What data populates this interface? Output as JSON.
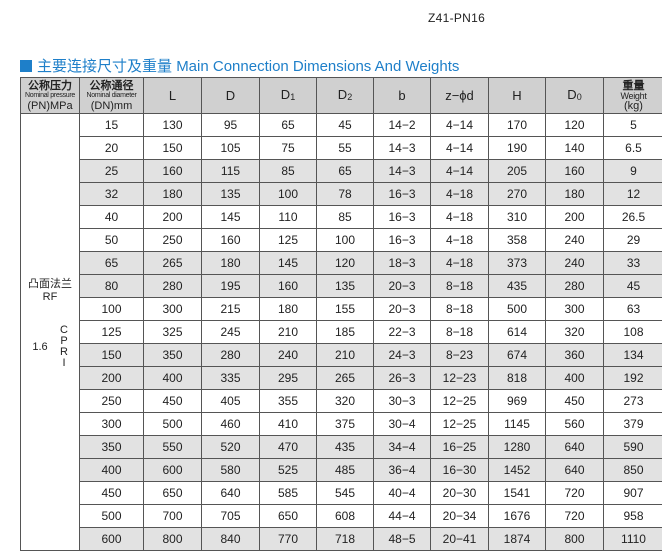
{
  "model": "Z41-PN16",
  "section_title_cn": "主要连接尺寸及重量",
  "section_title_en": "Main Connection Dimensions And Weights",
  "colors": {
    "accent": "#1e7fc9",
    "header_bg": "#d0d0d0",
    "stripe": "#e2e2e2"
  },
  "headers": {
    "pn_cn": "公称压力",
    "pn_en": "Nominal pressure",
    "pn_unit": "(PN)MPa",
    "dn_cn": "公称通径",
    "dn_en": "Nominal diameter",
    "dn_unit": "(DN)mm",
    "L": "L",
    "D": "D",
    "D1_base": "D",
    "D1_sub": "1",
    "D2_base": "D",
    "D2_sub": "2",
    "b": "b",
    "zd": "z−ϕd",
    "H": "H",
    "D0_base": "D",
    "D0_sub": "0",
    "w_cn": "重量",
    "w_en": "Weight",
    "w_unit": "(kg)"
  },
  "left_cell": {
    "face_cn": "凸面法兰",
    "face_en": "RF",
    "pressure": "1.6",
    "vertical": [
      "C",
      "P",
      "R",
      "I"
    ]
  },
  "rows": [
    [
      "15",
      "130",
      "95",
      "65",
      "45",
      "14−2",
      "4−14",
      "170",
      "120",
      "5"
    ],
    [
      "20",
      "150",
      "105",
      "75",
      "55",
      "14−3",
      "4−14",
      "190",
      "140",
      "6.5"
    ],
    [
      "25",
      "160",
      "115",
      "85",
      "65",
      "14−3",
      "4−14",
      "205",
      "160",
      "9"
    ],
    [
      "32",
      "180",
      "135",
      "100",
      "78",
      "16−3",
      "4−18",
      "270",
      "180",
      "12"
    ],
    [
      "40",
      "200",
      "145",
      "110",
      "85",
      "16−3",
      "4−18",
      "310",
      "200",
      "26.5"
    ],
    [
      "50",
      "250",
      "160",
      "125",
      "100",
      "16−3",
      "4−18",
      "358",
      "240",
      "29"
    ],
    [
      "65",
      "265",
      "180",
      "145",
      "120",
      "18−3",
      "4−18",
      "373",
      "240",
      "33"
    ],
    [
      "80",
      "280",
      "195",
      "160",
      "135",
      "20−3",
      "8−18",
      "435",
      "280",
      "45"
    ],
    [
      "100",
      "300",
      "215",
      "180",
      "155",
      "20−3",
      "8−18",
      "500",
      "300",
      "63"
    ],
    [
      "125",
      "325",
      "245",
      "210",
      "185",
      "22−3",
      "8−18",
      "614",
      "320",
      "108"
    ],
    [
      "150",
      "350",
      "280",
      "240",
      "210",
      "24−3",
      "8−23",
      "674",
      "360",
      "134"
    ],
    [
      "200",
      "400",
      "335",
      "295",
      "265",
      "26−3",
      "12−23",
      "818",
      "400",
      "192"
    ],
    [
      "250",
      "450",
      "405",
      "355",
      "320",
      "30−3",
      "12−25",
      "969",
      "450",
      "273"
    ],
    [
      "300",
      "500",
      "460",
      "410",
      "375",
      "30−4",
      "12−25",
      "1145",
      "560",
      "379"
    ],
    [
      "350",
      "550",
      "520",
      "470",
      "435",
      "34−4",
      "16−25",
      "1280",
      "640",
      "590"
    ],
    [
      "400",
      "600",
      "580",
      "525",
      "485",
      "36−4",
      "16−30",
      "1452",
      "640",
      "850"
    ],
    [
      "450",
      "650",
      "640",
      "585",
      "545",
      "40−4",
      "20−30",
      "1541",
      "720",
      "907"
    ],
    [
      "500",
      "700",
      "705",
      "650",
      "608",
      "44−4",
      "20−34",
      "1676",
      "720",
      "958"
    ],
    [
      "600",
      "800",
      "840",
      "770",
      "718",
      "48−5",
      "20−41",
      "1874",
      "800",
      "1110"
    ]
  ]
}
